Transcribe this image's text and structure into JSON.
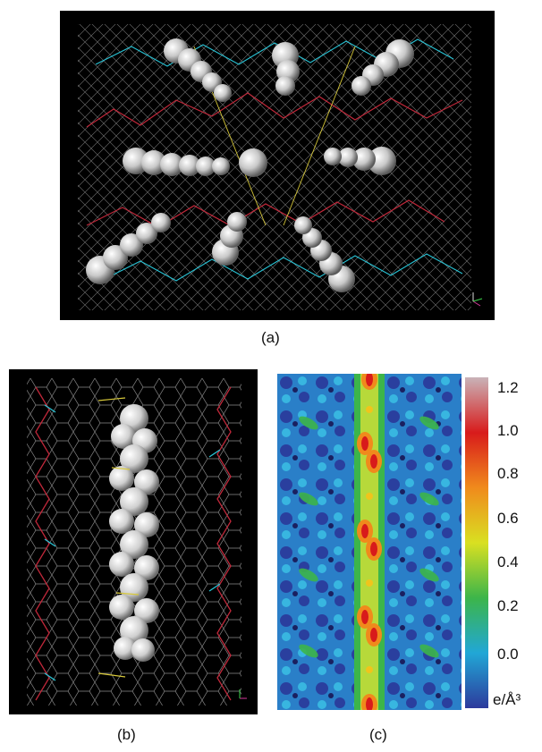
{
  "figure": {
    "caption_a": "(a)",
    "caption_b": "(b)",
    "caption_c": "(c)"
  },
  "colorbar": {
    "ticks": [
      "1.2",
      "1.0",
      "0.8",
      "0.6",
      "0.4",
      "0.2",
      "0.0"
    ],
    "unit": "e/Å³",
    "colors": [
      "#c9b3b8",
      "#d81b1b",
      "#f08a1c",
      "#d9e021",
      "#3cb54a",
      "#21a7d6",
      "#2d3a9c"
    ]
  }
}
